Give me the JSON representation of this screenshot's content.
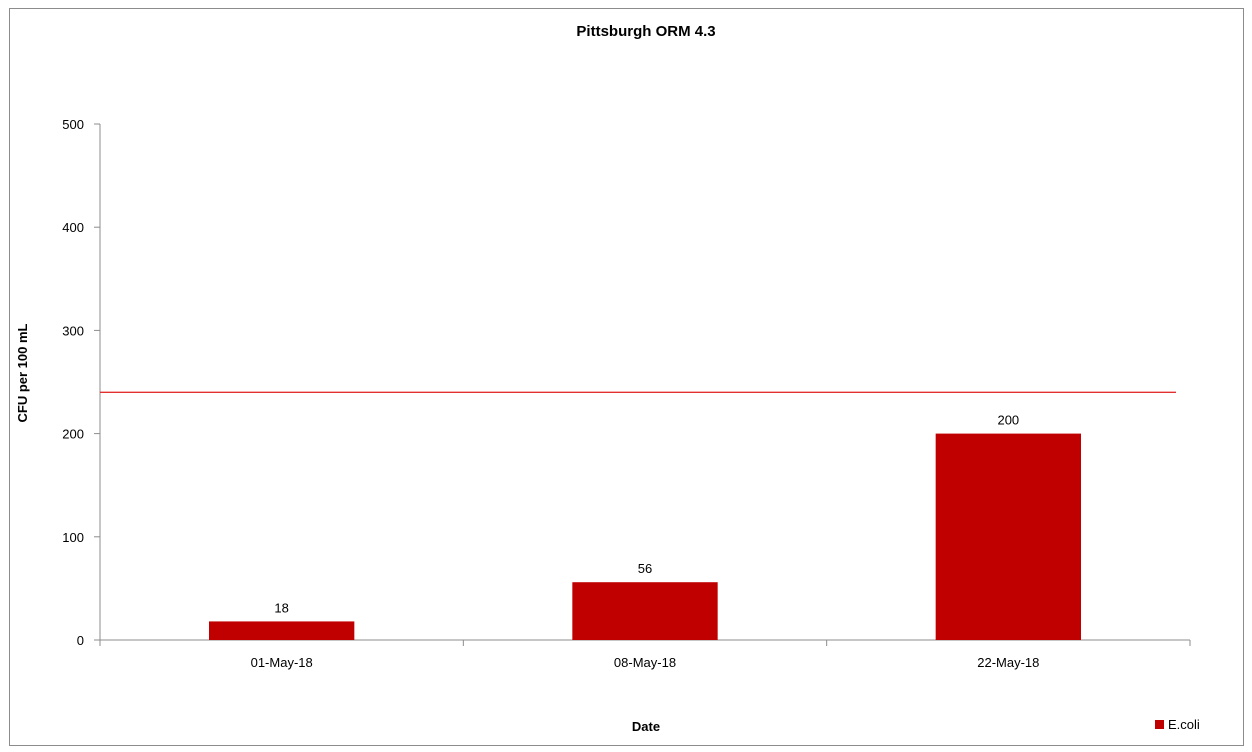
{
  "chart_data": {
    "type": "bar",
    "title": "Pittsburgh ORM 4.3",
    "xlabel": "Date",
    "ylabel": "CFU per 100 mL",
    "categories": [
      "01-May-18",
      "08-May-18",
      "22-May-18"
    ],
    "series": [
      {
        "name": "E.coli",
        "values": [
          18,
          56,
          200
        ],
        "color": "#c00000"
      }
    ],
    "data_labels": [
      "18",
      "56",
      "200"
    ],
    "ylim": [
      0,
      500
    ],
    "yticks": [
      0,
      100,
      200,
      300,
      400,
      500
    ],
    "threshold_line": {
      "value": 240,
      "color": "#e03030"
    },
    "grid": false,
    "legend_position": "bottom-right"
  }
}
